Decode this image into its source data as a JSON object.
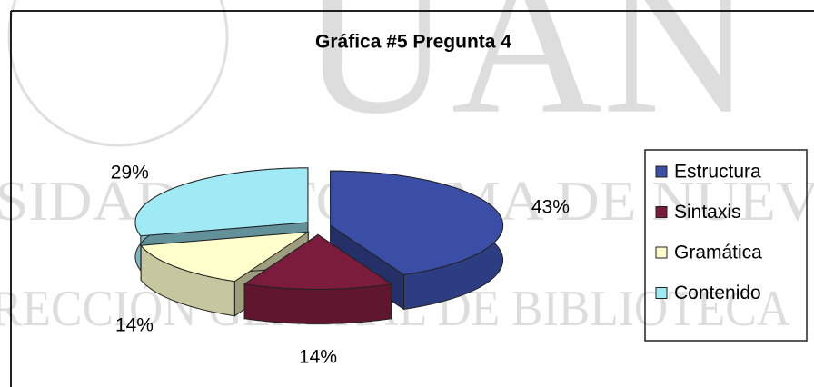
{
  "chart_data": {
    "type": "pie",
    "title": "Gráfica #5 Pregunta  4",
    "categories": [
      "Estructura",
      "Sintaxis",
      "Gramática",
      "Contenido"
    ],
    "values": [
      43,
      14,
      14,
      29
    ],
    "value_labels": [
      "43%",
      "14%",
      "14%",
      "29%"
    ],
    "colors": [
      "#3a4ea6",
      "#7c1c3c",
      "#ffffcc",
      "#a0eaf6"
    ],
    "legend": "right"
  },
  "watermark": {
    "logo": "UAN",
    "line1": "RSIDAD AUTÓNOMA DE NUEVO",
    "line2": "RECCIÓN GENERAL DE BIBLIOTECA"
  }
}
